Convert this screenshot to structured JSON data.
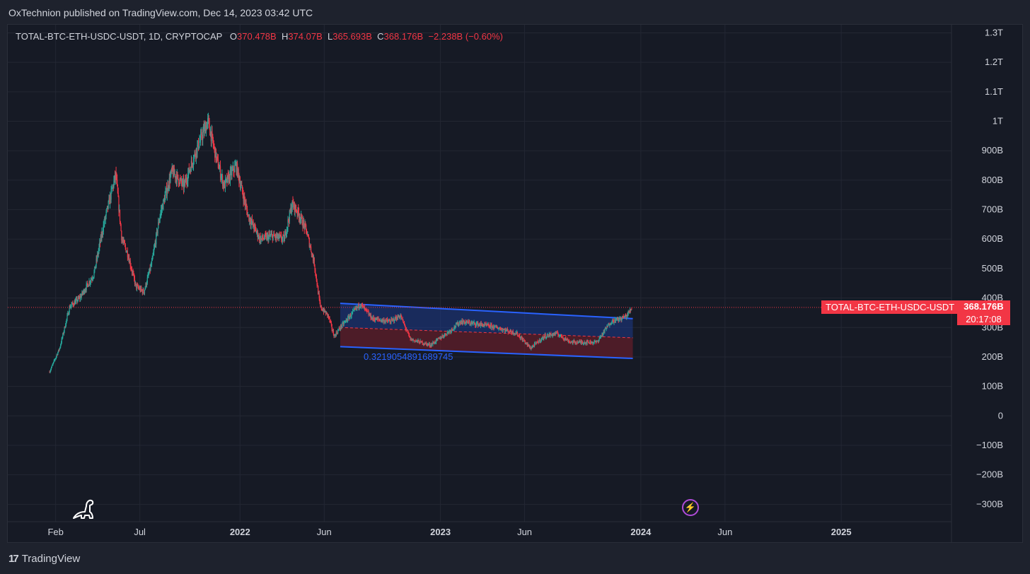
{
  "header": {
    "publisher_line": "OxTechnion published on TradingView.com, Dec 14, 2023 03:42 UTC"
  },
  "legend": {
    "symbol": "TOTAL-BTC-ETH-USDC-USDT, 1D, CRYPTOCAP",
    "o_label": "O",
    "o_value": "370.478B",
    "h_label": "H",
    "h_value": "374.07B",
    "l_label": "L",
    "l_value": "365.693B",
    "c_label": "C",
    "c_value": "368.176B",
    "change": "−2.238B (−0.60%)"
  },
  "price_tag": {
    "symbol": "TOTAL-BTC-ETH-USDC-USDT",
    "price": "368.176B",
    "countdown": "20:17:08"
  },
  "channel_label": "0.3219054891689745",
  "footer": {
    "brand": "TradingView",
    "logo_mark": "17"
  },
  "icons": {
    "logo": "tradingview-logo-icon",
    "dino": "dinosaur-icon",
    "flash": "lightning-icon"
  },
  "colors": {
    "up": "#26a69a",
    "down": "#f23645",
    "channel_line": "#2962ff",
    "channel_upper_fill": "#1e3a8a",
    "channel_lower_fill": "#6b1d2a",
    "price_line": "#f23645"
  },
  "chart_data": {
    "type": "candlestick",
    "title": "TOTAL-BTC-ETH-USDC-USDT, 1D, CRYPTOCAP",
    "ylim": [
      -340,
      1330
    ],
    "y_ticks": [
      {
        "v": 1300,
        "label": "1.3T"
      },
      {
        "v": 1200,
        "label": "1.2T"
      },
      {
        "v": 1100,
        "label": "1.1T"
      },
      {
        "v": 1000,
        "label": "1T"
      },
      {
        "v": 900,
        "label": "900B"
      },
      {
        "v": 800,
        "label": "800B"
      },
      {
        "v": 700,
        "label": "700B"
      },
      {
        "v": 600,
        "label": "600B"
      },
      {
        "v": 500,
        "label": "500B"
      },
      {
        "v": 400,
        "label": "400B"
      },
      {
        "v": 300,
        "label": "300B"
      },
      {
        "v": 200,
        "label": "200B"
      },
      {
        "v": 100,
        "label": "100B"
      },
      {
        "v": 0,
        "label": "0"
      },
      {
        "v": -100,
        "label": "−100B"
      },
      {
        "v": -200,
        "label": "−200B"
      },
      {
        "v": -300,
        "label": "−300B"
      }
    ],
    "x_ticks": [
      {
        "t": 2021.08,
        "label": "Feb",
        "bold": false
      },
      {
        "t": 2021.5,
        "label": "Jul",
        "bold": false
      },
      {
        "t": 2022.0,
        "label": "2022",
        "bold": true
      },
      {
        "t": 2022.42,
        "label": "Jun",
        "bold": false
      },
      {
        "t": 2023.0,
        "label": "2023",
        "bold": true
      },
      {
        "t": 2023.42,
        "label": "Jun",
        "bold": false
      },
      {
        "t": 2024.0,
        "label": "2024",
        "bold": true
      },
      {
        "t": 2024.42,
        "label": "Jun",
        "bold": false
      },
      {
        "t": 2025.0,
        "label": "2025",
        "bold": true
      }
    ],
    "xlim": [
      2020.88,
      2025.55
    ],
    "last_price": 368.176,
    "path": [
      {
        "t": 2021.05,
        "v": 150
      },
      {
        "t": 2021.1,
        "v": 230
      },
      {
        "t": 2021.15,
        "v": 370
      },
      {
        "t": 2021.2,
        "v": 400
      },
      {
        "t": 2021.27,
        "v": 480
      },
      {
        "t": 2021.32,
        "v": 650
      },
      {
        "t": 2021.38,
        "v": 820
      },
      {
        "t": 2021.41,
        "v": 600
      },
      {
        "t": 2021.44,
        "v": 550
      },
      {
        "t": 2021.48,
        "v": 440
      },
      {
        "t": 2021.52,
        "v": 420
      },
      {
        "t": 2021.56,
        "v": 520
      },
      {
        "t": 2021.6,
        "v": 680
      },
      {
        "t": 2021.66,
        "v": 830
      },
      {
        "t": 2021.72,
        "v": 780
      },
      {
        "t": 2021.78,
        "v": 900
      },
      {
        "t": 2021.84,
        "v": 1000
      },
      {
        "t": 2021.88,
        "v": 880
      },
      {
        "t": 2021.92,
        "v": 780
      },
      {
        "t": 2021.98,
        "v": 850
      },
      {
        "t": 2022.04,
        "v": 680
      },
      {
        "t": 2022.1,
        "v": 600
      },
      {
        "t": 2022.16,
        "v": 610
      },
      {
        "t": 2022.22,
        "v": 600
      },
      {
        "t": 2022.26,
        "v": 720
      },
      {
        "t": 2022.29,
        "v": 690
      },
      {
        "t": 2022.33,
        "v": 630
      },
      {
        "t": 2022.37,
        "v": 520
      },
      {
        "t": 2022.4,
        "v": 370
      },
      {
        "t": 2022.44,
        "v": 340
      },
      {
        "t": 2022.47,
        "v": 270
      },
      {
        "t": 2022.5,
        "v": 300
      },
      {
        "t": 2022.55,
        "v": 340
      },
      {
        "t": 2022.6,
        "v": 380
      },
      {
        "t": 2022.66,
        "v": 330
      },
      {
        "t": 2022.75,
        "v": 320
      },
      {
        "t": 2022.8,
        "v": 340
      },
      {
        "t": 2022.85,
        "v": 260
      },
      {
        "t": 2022.95,
        "v": 240
      },
      {
        "t": 2023.05,
        "v": 290
      },
      {
        "t": 2023.1,
        "v": 320
      },
      {
        "t": 2023.2,
        "v": 310
      },
      {
        "t": 2023.28,
        "v": 300
      },
      {
        "t": 2023.38,
        "v": 280
      },
      {
        "t": 2023.45,
        "v": 230
      },
      {
        "t": 2023.52,
        "v": 270
      },
      {
        "t": 2023.58,
        "v": 280
      },
      {
        "t": 2023.65,
        "v": 250
      },
      {
        "t": 2023.72,
        "v": 250
      },
      {
        "t": 2023.78,
        "v": 250
      },
      {
        "t": 2023.85,
        "v": 320
      },
      {
        "t": 2023.9,
        "v": 330
      },
      {
        "t": 2023.93,
        "v": 340
      },
      {
        "t": 2023.955,
        "v": 368
      }
    ],
    "channel": {
      "start": {
        "t": 2022.5,
        "upper": 382,
        "mid": 300,
        "lower": 235
      },
      "end": {
        "t": 2023.96,
        "upper": 330,
        "mid": 265,
        "lower": 195
      }
    }
  }
}
